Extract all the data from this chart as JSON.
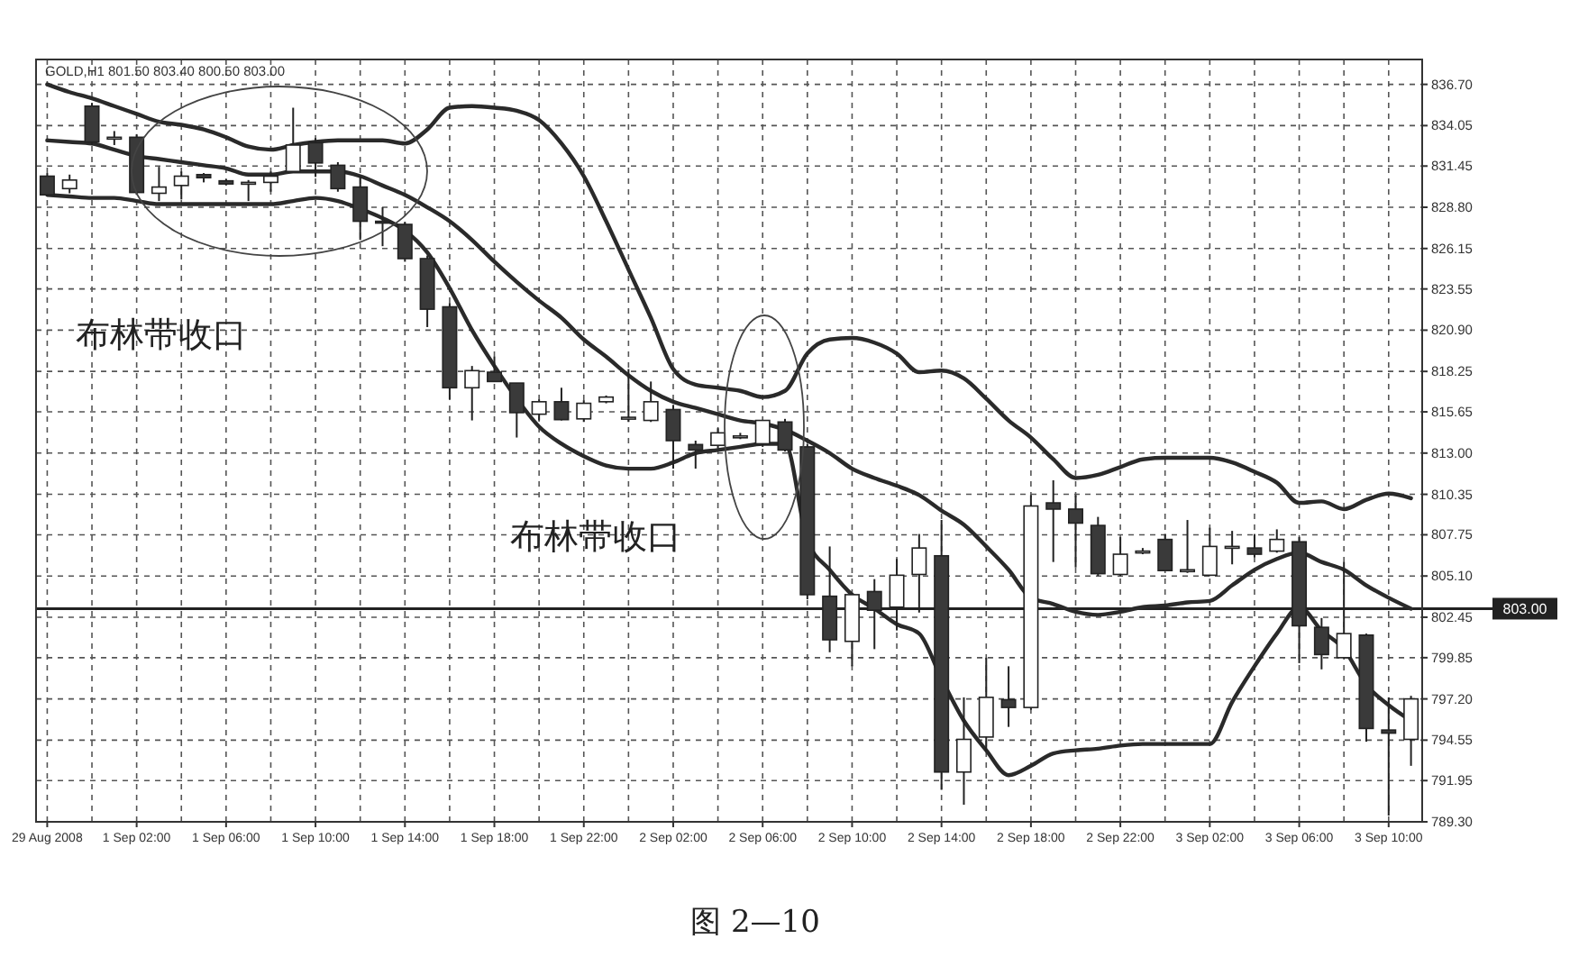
{
  "chart_data": {
    "type": "candlestick",
    "annotations": [
      "GOLD,H1  801.50 803.40 800.50 803.00",
      "布林带收口",
      "布林带收口",
      "图 2—10"
    ],
    "categories": [
      "29 Aug 2008",
      null,
      null,
      null,
      "1 Sep 02:00",
      null,
      null,
      null,
      "1 Sep 06:00",
      null,
      null,
      null,
      "1 Sep 10:00",
      null,
      null,
      null,
      "1 Sep 14:00",
      null,
      null,
      null,
      "1 Sep 18:00",
      null,
      null,
      null,
      "1 Sep 22:00",
      null,
      null,
      null,
      "2 Sep 02:00",
      null,
      null,
      null,
      "2 Sep 06:00",
      null,
      null,
      null,
      "2 Sep 10:00",
      null,
      null,
      null,
      "2 Sep 14:00",
      null,
      null,
      null,
      "2 Sep 18:00",
      null,
      null,
      null,
      "2 Sep 22:00",
      null,
      null,
      null,
      "3 Sep 02:00",
      null,
      null,
      null,
      "3 Sep 06:00",
      null,
      null,
      null,
      "3 Sep 10:00",
      null
    ],
    "ohlc": [
      [
        830.8,
        831.0,
        829.5,
        829.6
      ],
      [
        830.0,
        830.9,
        829.7,
        830.55
      ],
      [
        835.3,
        835.5,
        832.8,
        833.0
      ],
      [
        833.3,
        833.7,
        832.8,
        833.3
      ],
      [
        833.3,
        833.5,
        829.6,
        829.75
      ],
      [
        829.7,
        831.4,
        829.2,
        830.1
      ],
      [
        830.2,
        831.1,
        829.3,
        830.8
      ],
      [
        830.9,
        831.0,
        830.4,
        830.7
      ],
      [
        830.5,
        830.6,
        830.2,
        830.3
      ],
      [
        830.4,
        830.55,
        829.2,
        830.4
      ],
      [
        830.4,
        831.1,
        829.8,
        830.8
      ],
      [
        831.1,
        835.2,
        831.1,
        832.8
      ],
      [
        832.95,
        833.25,
        830.75,
        831.65
      ],
      [
        831.5,
        831.7,
        829.8,
        830.0
      ],
      [
        830.1,
        830.8,
        826.7,
        827.9
      ],
      [
        827.9,
        828.8,
        826.3,
        827.8
      ],
      [
        827.7,
        827.85,
        825.3,
        825.5
      ],
      [
        825.5,
        825.7,
        821.1,
        822.25
      ],
      [
        822.4,
        822.65,
        816.45,
        817.2
      ],
      [
        817.2,
        818.6,
        815.1,
        818.3
      ],
      [
        818.2,
        819.2,
        817.6,
        817.6
      ],
      [
        817.5,
        817.5,
        814.0,
        815.6
      ],
      [
        815.5,
        816.45,
        815.1,
        816.3
      ],
      [
        816.3,
        817.2,
        815.1,
        815.15
      ],
      [
        815.2,
        816.4,
        815.0,
        816.2
      ],
      [
        816.3,
        816.7,
        816.2,
        816.6
      ],
      [
        815.3,
        818.4,
        815.0,
        815.3
      ],
      [
        815.1,
        817.6,
        815.0,
        816.3
      ],
      [
        815.8,
        816.1,
        812.0,
        813.8
      ],
      [
        813.55,
        813.8,
        812.0,
        813.2
      ],
      [
        813.5,
        814.6,
        813.3,
        814.3
      ],
      [
        814.1,
        814.3,
        813.9,
        814.1
      ],
      [
        813.6,
        815.1,
        813.4,
        815.1
      ],
      [
        815.0,
        815.2,
        813.1,
        813.2
      ],
      [
        813.4,
        813.6,
        803.6,
        803.9
      ],
      [
        803.8,
        807.0,
        800.2,
        801.0
      ],
      [
        800.9,
        804.0,
        799.3,
        803.9
      ],
      [
        804.1,
        804.9,
        800.4,
        802.9
      ],
      [
        803.1,
        806.2,
        801.6,
        805.15
      ],
      [
        805.2,
        807.8,
        802.75,
        806.9
      ],
      [
        806.4,
        808.7,
        791.35,
        792.5
      ],
      [
        792.5,
        797.3,
        790.4,
        794.6
      ],
      [
        794.75,
        799.85,
        793.85,
        797.3
      ],
      [
        797.15,
        799.3,
        795.4,
        796.65
      ],
      [
        796.65,
        810.3,
        796.5,
        809.6
      ],
      [
        809.8,
        811.25,
        806.0,
        809.4
      ],
      [
        809.4,
        810.3,
        805.65,
        808.5
      ],
      [
        808.35,
        808.9,
        805.1,
        805.25
      ],
      [
        805.2,
        807.6,
        805.1,
        806.5
      ],
      [
        806.7,
        806.9,
        806.5,
        806.7
      ],
      [
        807.45,
        807.8,
        805.45,
        805.45
      ],
      [
        805.5,
        808.7,
        805.3,
        805.5
      ],
      [
        805.15,
        808.2,
        805.1,
        807.0
      ],
      [
        807.0,
        808.0,
        805.85,
        807.0
      ],
      [
        806.9,
        807.8,
        806.3,
        806.5
      ],
      [
        806.7,
        808.1,
        806.6,
        807.45
      ],
      [
        807.3,
        807.6,
        799.5,
        801.9
      ],
      [
        801.8,
        802.4,
        799.1,
        800.05
      ],
      [
        799.85,
        806.0,
        799.8,
        801.4
      ],
      [
        801.3,
        801.4,
        794.45,
        795.3
      ],
      [
        795.2,
        797.3,
        789.7,
        795.0
      ],
      [
        794.6,
        797.4,
        792.9,
        797.2
      ]
    ],
    "series": [
      {
        "type": "line",
        "color": "#2a2a2a",
        "values": [
          836.7,
          836.2,
          835.8,
          835.3,
          834.8,
          834.3,
          834.1,
          833.8,
          833.3,
          832.7,
          832.5,
          832.8,
          833.0,
          833.1,
          833.1,
          833.1,
          832.9,
          833.8,
          835.2,
          835.3,
          835.2,
          835.0,
          834.4,
          832.9,
          830.8,
          827.9,
          824.8,
          821.7,
          818.4,
          817.4,
          817.2,
          817.0,
          816.6,
          817.0,
          819.4,
          820.3,
          820.4,
          820.1,
          819.4,
          818.2,
          818.3,
          817.8,
          816.5,
          815.1,
          814.0,
          812.6,
          811.4,
          811.6,
          812.1,
          812.6,
          812.7,
          812.7,
          812.7,
          812.4,
          811.8,
          811.1,
          809.8,
          809.9,
          809.4,
          810.0,
          810.4,
          810.1
        ]
      },
      {
        "type": "line",
        "color": "#2a2a2a",
        "values": [
          833.1,
          833.0,
          832.9,
          832.5,
          832.1,
          831.9,
          831.7,
          831.5,
          831.3,
          830.9,
          830.9,
          831.1,
          831.1,
          831.1,
          830.8,
          830.2,
          829.6,
          828.8,
          827.9,
          826.7,
          825.3,
          824.0,
          822.8,
          821.7,
          820.3,
          819.2,
          818.0,
          817.0,
          816.3,
          815.9,
          815.5,
          815.1,
          814.9,
          814.5,
          813.8,
          813.0,
          812.0,
          811.4,
          810.9,
          810.3,
          809.3,
          808.4,
          807.0,
          805.5,
          803.7,
          803.3,
          802.8,
          802.6,
          802.8,
          803.1,
          803.2,
          803.4,
          803.5,
          804.5,
          805.5,
          806.2,
          806.6,
          806.0,
          805.5,
          804.5,
          803.7,
          803.0
        ]
      },
      {
        "type": "line",
        "color": "#2a2a2a",
        "values": [
          829.6,
          829.5,
          829.4,
          829.4,
          829.2,
          829.0,
          829.0,
          829.0,
          829.0,
          829.0,
          829.0,
          829.2,
          829.4,
          829.2,
          828.7,
          828.1,
          827.3,
          825.9,
          823.6,
          820.9,
          818.6,
          816.5,
          814.7,
          813.6,
          812.8,
          812.2,
          812.0,
          812.0,
          812.4,
          813.0,
          813.2,
          813.4,
          813.6,
          813.6,
          807.4,
          805.5,
          803.9,
          803.0,
          802.0,
          801.4,
          798.5,
          795.8,
          793.9,
          792.3,
          792.9,
          793.7,
          793.9,
          794.0,
          794.2,
          794.3,
          794.3,
          794.3,
          794.3,
          797.0,
          799.3,
          801.4,
          803.1,
          801.6,
          800.4,
          798.1,
          796.8,
          795.8
        ]
      }
    ],
    "ylim": [
      789.3,
      838.3
    ],
    "yticks": [
      {
        "value": 836.7,
        "label": "836.70"
      },
      834.05,
      831.45,
      {
        "value": 828.8,
        "label": "828.80"
      },
      826.15,
      823.55,
      {
        "value": 820.9,
        "label": "820.90"
      },
      818.25,
      815.65,
      {
        "value": 813.0,
        "label": "813.00"
      },
      810.35,
      807.75,
      {
        "value": 805.1,
        "label": "805.10"
      },
      802.45,
      799.85,
      {
        "value": 797.2,
        "label": "797.20"
      },
      794.55,
      791.95,
      {
        "value": 789.3,
        "label": "789.30"
      }
    ],
    "ref_lines": [
      {
        "axis": "y",
        "value": 803.0,
        "label": "803.00",
        "color": "#222222"
      }
    ],
    "grid": true
  }
}
